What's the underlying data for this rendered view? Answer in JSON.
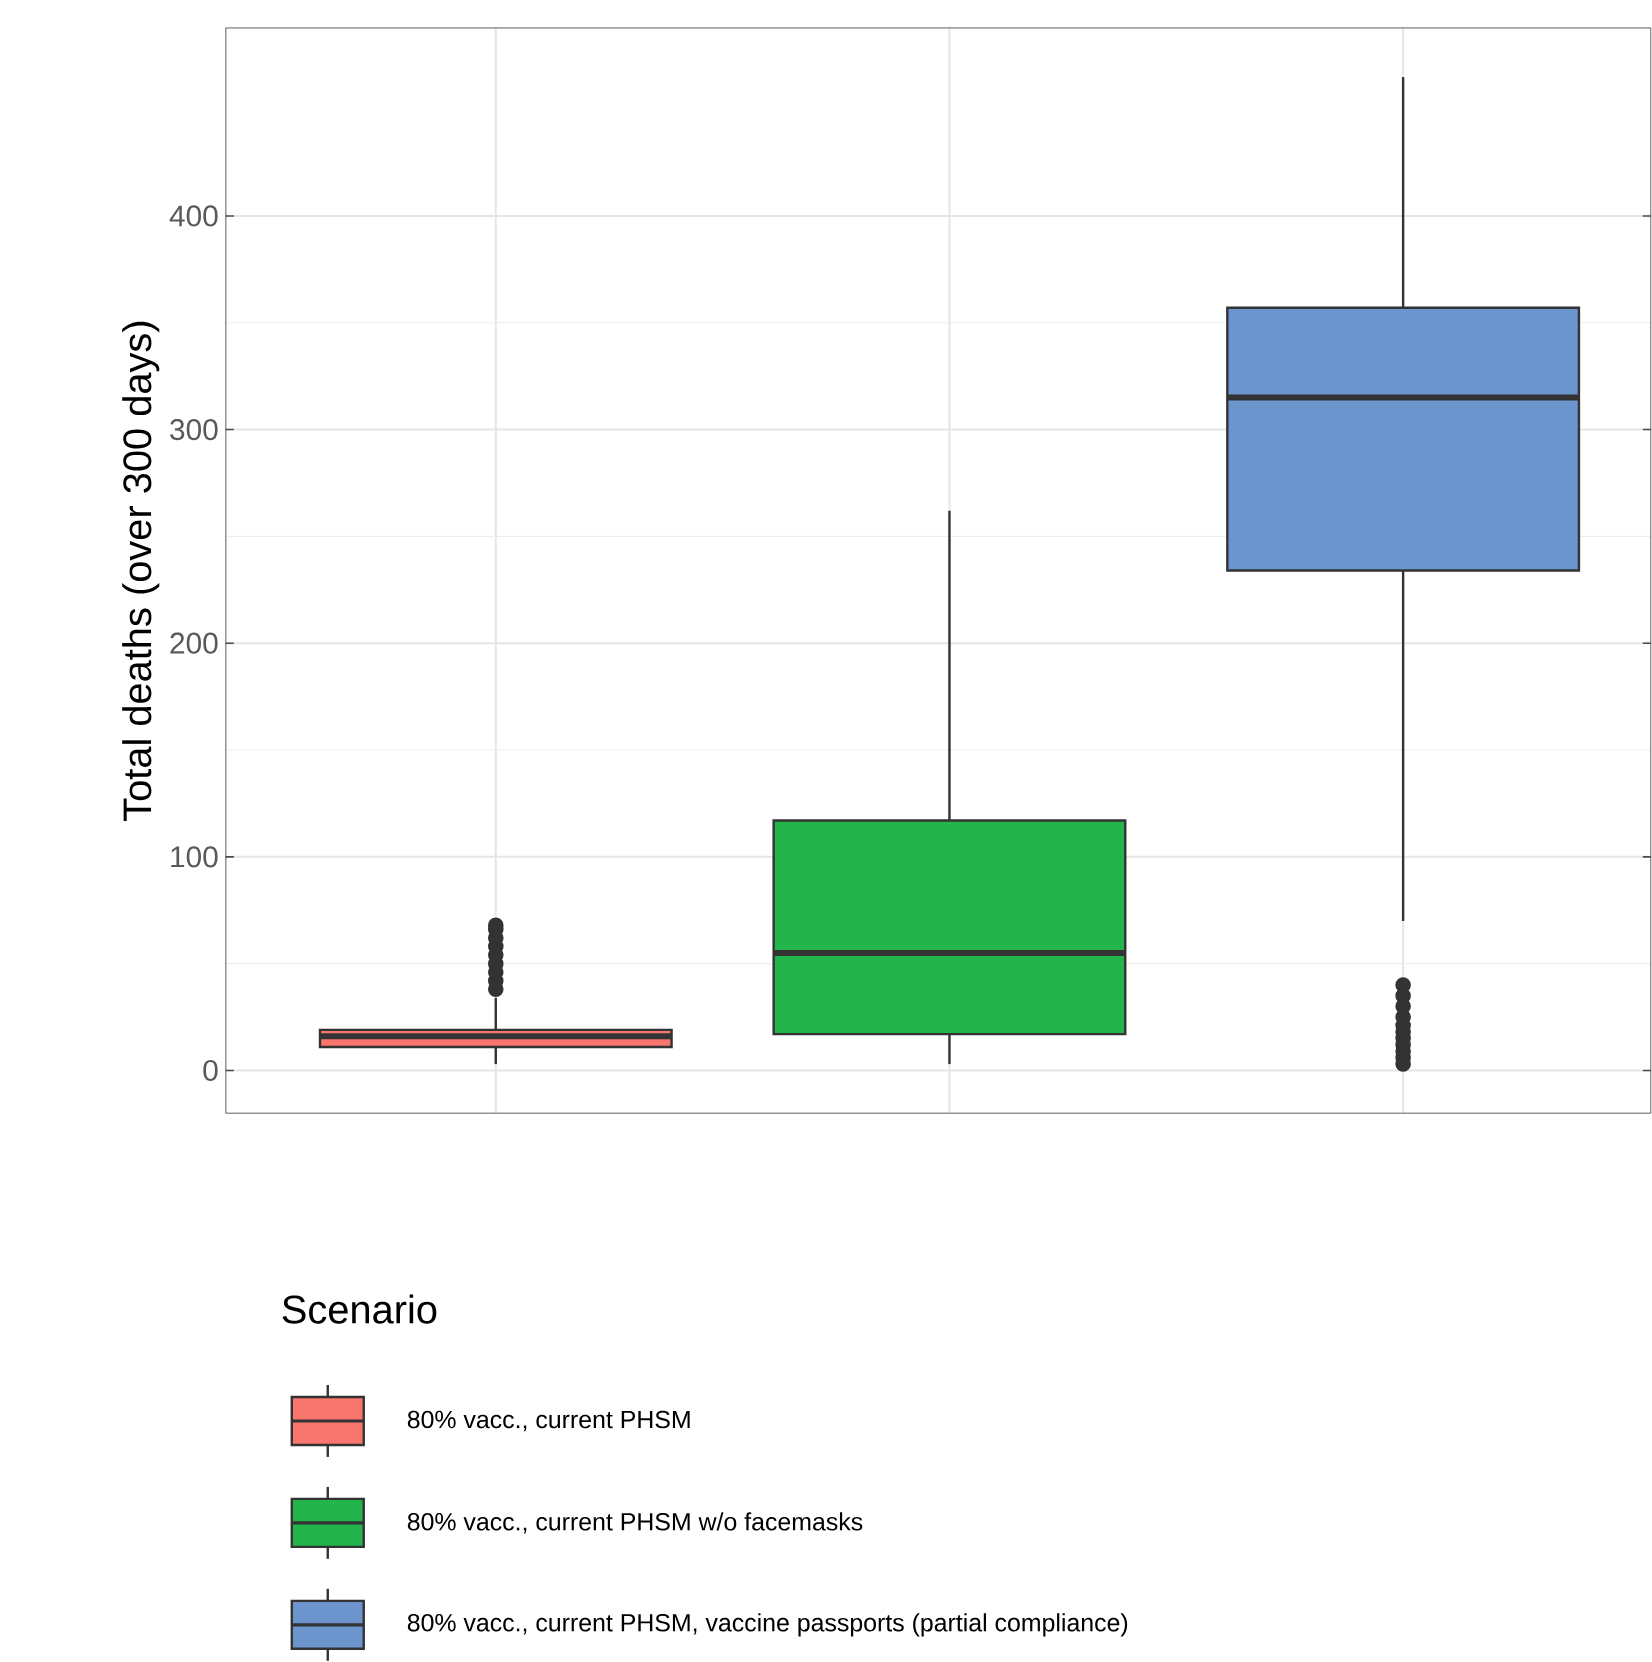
{
  "chart_data": {
    "type": "box",
    "ylabel": "Total deaths (over 300 days)",
    "legend_title": "Scenario",
    "categories": [
      null,
      null,
      null
    ],
    "ylim": [
      -20,
      488
    ],
    "yticks": [
      0,
      100,
      200,
      300,
      400
    ],
    "grid": true,
    "legend": "bottom",
    "tick_labels": "y",
    "series": [
      {
        "name": "80% vacc., current PHSM",
        "color": "#f8766d",
        "boxes": [
          {
            "low": 3,
            "q1": 11,
            "median": 16,
            "q3": 19,
            "high": 34,
            "outliers": [
              38,
              42,
              46,
              50,
              54,
              58,
              62,
              66,
              68
            ]
          },
          null,
          null
        ]
      },
      {
        "name": "80% vacc., current PHSM w/o facemasks",
        "color": "#23b44c",
        "boxes": [
          null,
          {
            "low": 3,
            "q1": 17,
            "median": 55,
            "q3": 117,
            "high": 262
          },
          null
        ]
      },
      {
        "name": "80% vacc., current PHSM, vaccine passports (partial compliance)",
        "color": "#6b95cc",
        "boxes": [
          null,
          null,
          {
            "low": 70,
            "q1": 234,
            "median": 315,
            "q3": 357,
            "high": 465,
            "outliers": [
              3,
              6,
              9,
              12,
              15,
              18,
              21,
              25,
              30,
              35,
              40
            ]
          }
        ]
      }
    ]
  }
}
